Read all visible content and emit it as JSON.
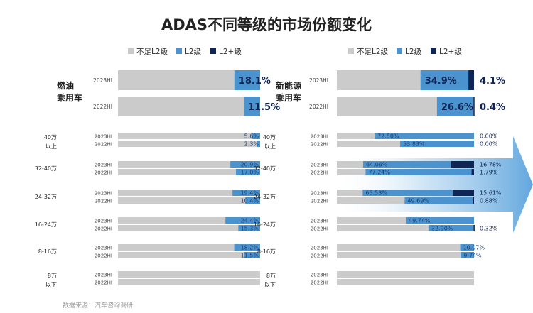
{
  "title": "ADAS不同等级的市场份额变化",
  "legend": [
    {
      "label": "不足L2级",
      "color": "#cbcbcb"
    },
    {
      "label": "L2级",
      "color": "#4a93cf"
    },
    {
      "label": "L2+级",
      "color": "#0f2556"
    }
  ],
  "footer": "数据来源：汽车咨询调研",
  "chart_data": [
    {
      "type": "bar",
      "stacked": true,
      "orientation": "horizontal",
      "panel": "left",
      "series_order": [
        "不足L2级",
        "L2级",
        "L2+级"
      ],
      "groups": [
        {
          "label": [
            "燃油",
            "乘用车"
          ],
          "rows": [
            {
              "period": "2023HI",
              "l2": 18.1,
              "l2plus": 0,
              "labels": [
                "18.1%"
              ]
            },
            {
              "period": "2022HI",
              "l2": 11.5,
              "l2plus": 0,
              "labels": [
                "11.5%"
              ]
            }
          ]
        },
        {
          "label": [
            "40万",
            "以上"
          ],
          "rows": [
            {
              "period": "2023HI",
              "l2": 5.6,
              "l2plus": 0,
              "labels": [
                "5.6%"
              ]
            },
            {
              "period": "2022HI",
              "l2": 2.3,
              "l2plus": 0,
              "labels": [
                "2.3%"
              ]
            }
          ]
        },
        {
          "label": [
            "32-40万"
          ],
          "rows": [
            {
              "period": "2023HI",
              "l2": 20.9,
              "l2plus": 0,
              "labels": [
                "20.9%"
              ]
            },
            {
              "period": "2022HI",
              "l2": 17.0,
              "l2plus": 0,
              "labels": [
                "17.0%"
              ]
            }
          ]
        },
        {
          "label": [
            "24-32万"
          ],
          "rows": [
            {
              "period": "2023HI",
              "l2": 19.4,
              "l2plus": 0,
              "labels": [
                "19.4%"
              ]
            },
            {
              "period": "2022HI",
              "l2": 10.4,
              "l2plus": 0,
              "labels": [
                "10.4%"
              ]
            }
          ]
        },
        {
          "label": [
            "16-24万"
          ],
          "rows": [
            {
              "period": "2023HI",
              "l2": 24.4,
              "l2plus": 0,
              "labels": [
                "24.4%"
              ]
            },
            {
              "period": "2022HI",
              "l2": 15.3,
              "l2plus": 0,
              "labels": [
                "15.3%"
              ]
            }
          ]
        },
        {
          "label": [
            "8-16万"
          ],
          "rows": [
            {
              "period": "2023HI",
              "l2": 18.2,
              "l2plus": 0,
              "labels": [
                "18.2%"
              ]
            },
            {
              "period": "2022HI",
              "l2": 11.5,
              "l2plus": 0,
              "labels": [
                "11.5%"
              ]
            }
          ]
        },
        {
          "label": [
            "8万",
            "以下"
          ],
          "rows": [
            {
              "period": "2023HI",
              "l2": 0,
              "l2plus": 0,
              "labels": []
            },
            {
              "period": "2022HI",
              "l2": 0,
              "l2plus": 0,
              "labels": []
            }
          ]
        }
      ]
    },
    {
      "type": "bar",
      "stacked": true,
      "orientation": "horizontal",
      "panel": "right",
      "series_order": [
        "不足L2级",
        "L2级",
        "L2+级"
      ],
      "groups": [
        {
          "label": [
            "新能源",
            "乘用车"
          ],
          "rows": [
            {
              "period": "2023HI",
              "l2": 34.9,
              "l2plus": 4.1,
              "labels": [
                "34.9%",
                "4.1%"
              ]
            },
            {
              "period": "2022HI",
              "l2": 26.6,
              "l2plus": 0.4,
              "labels": [
                "26.6%",
                "0.4%"
              ]
            }
          ]
        },
        {
          "label": [
            "40万",
            "以上"
          ],
          "rows": [
            {
              "period": "2023HI",
              "l2": 72.5,
              "l2plus": 0,
              "labels": [
                "72.50%",
                "0.00%"
              ]
            },
            {
              "period": "2022HI",
              "l2": 53.83,
              "l2plus": 0,
              "labels": [
                "53.83%",
                "0.00%"
              ]
            }
          ]
        },
        {
          "label": [
            "32-40万"
          ],
          "rows": [
            {
              "period": "2023HI",
              "l2": 64.06,
              "l2plus": 16.78,
              "labels": [
                "64.06%",
                "16.78%"
              ]
            },
            {
              "period": "2022HI",
              "l2": 77.24,
              "l2plus": 1.79,
              "labels": [
                "77.24%",
                "1.79%"
              ]
            }
          ]
        },
        {
          "label": [
            "24-32万"
          ],
          "rows": [
            {
              "period": "2023HI",
              "l2": 65.53,
              "l2plus": 15.61,
              "labels": [
                "65.53%",
                "15.61%"
              ]
            },
            {
              "period": "2022HI",
              "l2": 49.69,
              "l2plus": 0.88,
              "labels": [
                "49.69%",
                "0.88%"
              ]
            }
          ]
        },
        {
          "label": [
            "16-24万"
          ],
          "rows": [
            {
              "period": "2023HI",
              "l2": 49.74,
              "l2plus": 0,
              "labels": [
                "49.74%"
              ]
            },
            {
              "period": "2022HI",
              "l2": 32.9,
              "l2plus": 0.32,
              "labels": [
                "32.90%",
                "0.32%"
              ]
            }
          ]
        },
        {
          "label": [
            "8-16万"
          ],
          "rows": [
            {
              "period": "2023HI",
              "l2": 10.07,
              "l2plus": 0,
              "labels": [
                "10.07%"
              ]
            },
            {
              "period": "2022HI",
              "l2": 9.74,
              "l2plus": 0,
              "labels": [
                "9.74%"
              ]
            }
          ]
        },
        {
          "label": [
            "8万",
            "以下"
          ],
          "rows": [
            {
              "period": "2023HI",
              "l2": 0,
              "l2plus": 0,
              "labels": []
            },
            {
              "period": "2022HI",
              "l2": 0,
              "l2plus": 0,
              "labels": []
            }
          ]
        }
      ]
    }
  ]
}
